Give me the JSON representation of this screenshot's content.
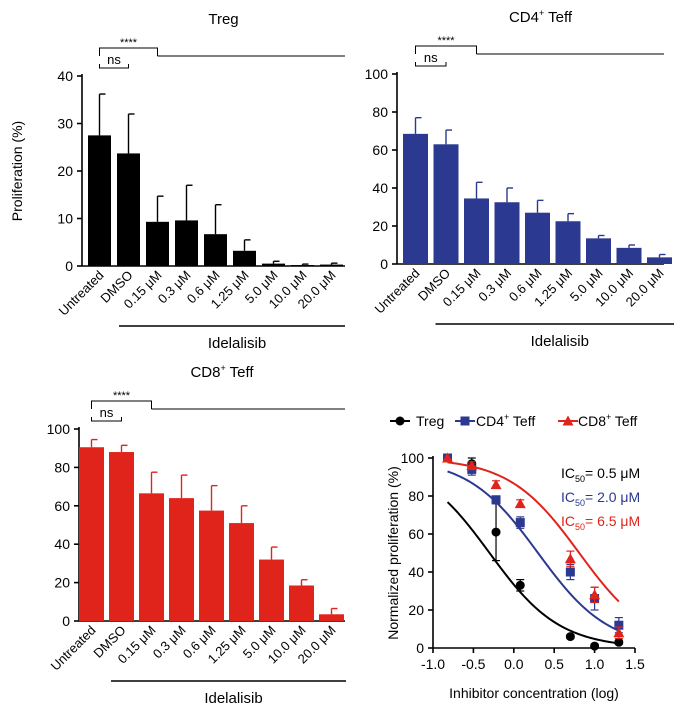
{
  "chart_data": [
    {
      "type": "bar",
      "title": "Treg",
      "title_sup": "",
      "ylabel": "Proliferation (%)",
      "xlabel": "",
      "color": "#000000",
      "ylim": [
        0,
        40
      ],
      "yticks": [
        "0",
        "10",
        "20",
        "30",
        "40"
      ],
      "categories": [
        "Untreated",
        "DMSO",
        "0.15 μM",
        "0.3 μM",
        "0.6 μM",
        "1.25 μM",
        "5.0 μM",
        "10.0 μM",
        "20.0 μM"
      ],
      "values": [
        27.5,
        23.7,
        9.3,
        9.6,
        6.7,
        3.2,
        0.5,
        0.2,
        0.3
      ],
      "errors": [
        8.7,
        8.3,
        5.4,
        7.4,
        6.2,
        2.3,
        0.5,
        0.2,
        0.3
      ],
      "group_label": "Idelalisib",
      "sig_label": "****",
      "ns_label": "ns"
    },
    {
      "type": "bar",
      "title": "CD4",
      "title_sup": "+",
      "title_rest": " Teff",
      "ylabel": "",
      "xlabel": "",
      "color": "#2b3990",
      "ylim": [
        0,
        100
      ],
      "yticks": [
        "0",
        "20",
        "40",
        "60",
        "80",
        "100"
      ],
      "categories": [
        "Untreated",
        "DMSO",
        "0.15 μM",
        "0.3 μM",
        "0.6 μM",
        "1.25 μM",
        "5.0 μM",
        "10.0 μM",
        "20.0 μM"
      ],
      "values": [
        68.5,
        63,
        34.5,
        32.5,
        27,
        22.5,
        13.5,
        8.5,
        3.5
      ],
      "errors": [
        8.5,
        7.5,
        8.5,
        7.5,
        6.5,
        4,
        1.5,
        1.5,
        1.5
      ],
      "group_label": "Idelalisib",
      "sig_label": "****",
      "ns_label": "ns"
    },
    {
      "type": "bar",
      "title": "CD8",
      "title_sup": "+",
      "title_rest": " Teff",
      "ylabel": "",
      "xlabel": "",
      "color": "#e0241b",
      "ylim": [
        0,
        100
      ],
      "yticks": [
        "0",
        "20",
        "40",
        "60",
        "80",
        "100"
      ],
      "categories": [
        "Untreated",
        "DMSO",
        "0.15 μM",
        "0.3 μM",
        "0.6 μM",
        "1.25 μM",
        "5.0 μM",
        "10.0 μM",
        "20.0 μM"
      ],
      "values": [
        90.5,
        88,
        66.5,
        64,
        57.5,
        51,
        32,
        18.5,
        3.5
      ],
      "errors": [
        4,
        3.5,
        11,
        12,
        13,
        9,
        6.5,
        3,
        3
      ],
      "group_label": "Idelalisib",
      "sig_label": "****",
      "ns_label": "ns"
    },
    {
      "type": "line",
      "title": "",
      "xlabel": "Inhibitor concentration (log)",
      "ylabel": "Normalized proliferation (%)",
      "xlim": [
        -1.0,
        1.5
      ],
      "ylim": [
        0,
        100
      ],
      "xticks": [
        "-1.0",
        "-0.5",
        "0.0",
        "0.5",
        "1.0",
        "1.5"
      ],
      "yticks": [
        "0",
        "20",
        "40",
        "60",
        "80",
        "100"
      ],
      "series": [
        {
          "name": "Treg",
          "sup": "",
          "name_rest": "Treg",
          "marker": "circle",
          "color": "#000000",
          "x": [
            -0.82,
            -0.52,
            -0.22,
            0.08,
            0.7,
            1.0,
            1.3
          ],
          "y": [
            100,
            97,
            61,
            33,
            6,
            1,
            3
          ],
          "err": [
            0,
            3,
            15,
            3,
            1,
            1,
            1
          ],
          "ic50_log": -0.3
        },
        {
          "name": "CD4+ Teff",
          "sup": "+",
          "name_pre": "CD4",
          "name_rest": " Teff",
          "marker": "square",
          "color": "#2b3990",
          "x": [
            -0.82,
            -0.52,
            -0.22,
            0.08,
            0.7,
            1.0,
            1.3
          ],
          "y": [
            100,
            94,
            78,
            66,
            40,
            26,
            12
          ],
          "err": [
            0,
            3,
            2,
            3,
            4,
            6,
            4
          ],
          "ic50_log": 0.3
        },
        {
          "name": "CD8+ Teff",
          "sup": "+",
          "name_pre": "CD8",
          "name_rest": " Teff",
          "marker": "triangle",
          "color": "#e0241b",
          "x": [
            -0.82,
            -0.52,
            -0.22,
            0.08,
            0.7,
            1.0,
            1.3
          ],
          "y": [
            100,
            96,
            86,
            76,
            47,
            28,
            8
          ],
          "err": [
            0,
            2,
            2,
            2,
            4,
            4,
            3
          ],
          "ic50_log": 0.81
        }
      ],
      "ic50_labels": [
        {
          "prefix": "IC",
          "sub": "50",
          "value": "= 0.5 μM",
          "color": "#000000"
        },
        {
          "prefix": "IC",
          "sub": "50",
          "value": "= 2.0 μM",
          "color": "#2b3990"
        },
        {
          "prefix": "IC",
          "sub": "50",
          "value": "= 6.5 μM",
          "color": "#e0241b"
        }
      ]
    }
  ]
}
